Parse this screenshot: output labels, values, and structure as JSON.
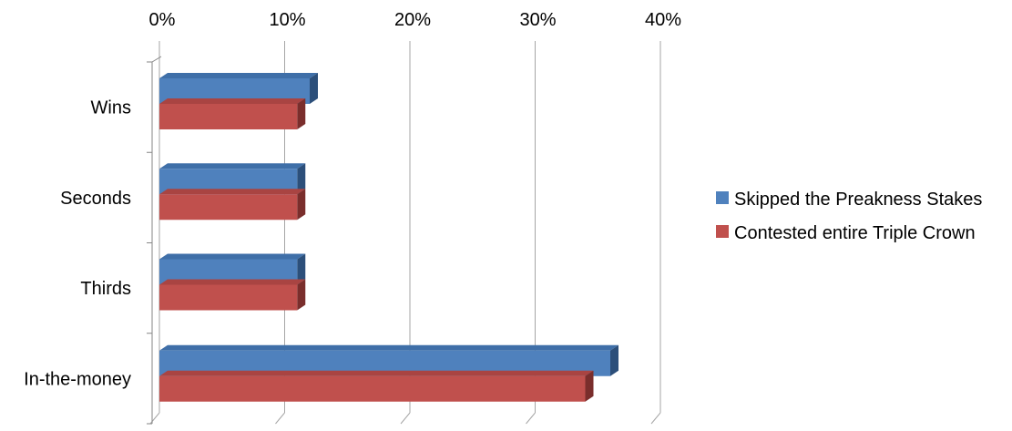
{
  "chart_data": {
    "type": "bar",
    "orientation": "horizontal",
    "style": "3d",
    "categories": [
      "Wins",
      "Seconds",
      "Thirds",
      "In-the-money"
    ],
    "series": [
      {
        "name": "Skipped the Preakness Stakes",
        "values": [
          0.12,
          0.11,
          0.11,
          0.36
        ]
      },
      {
        "name": "Contested entire Triple Crown",
        "values": [
          0.11,
          0.11,
          0.11,
          0.34
        ]
      }
    ],
    "x_ticks": [
      "0%",
      "10%",
      "20%",
      "30%",
      "40%"
    ],
    "xlim": [
      0,
      0.4
    ],
    "x_axis_position": "top",
    "grid": true,
    "legend_position": "right",
    "colors": {
      "series_front": [
        "#4f81bd",
        "#c0504d"
      ],
      "series_top": [
        "#3f6fa8",
        "#a94442"
      ],
      "series_side": [
        "#2c4f7a",
        "#7a2e2c"
      ],
      "grid": "#a6a6a6",
      "axis": "#868686"
    }
  }
}
